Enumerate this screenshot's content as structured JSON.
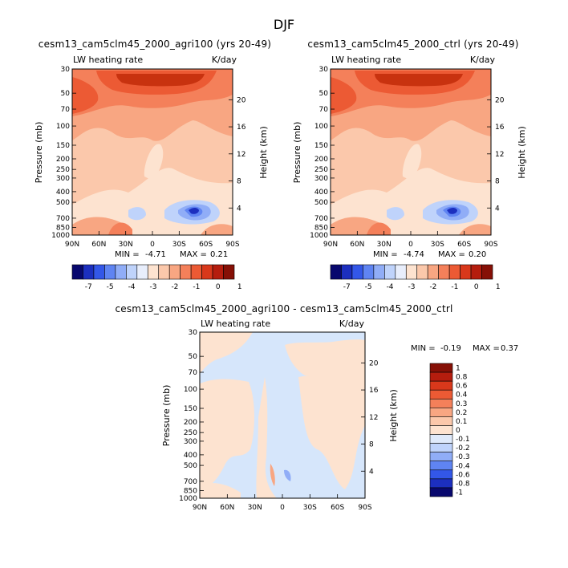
{
  "page_title": "DJF",
  "chart_data": [
    {
      "type": "heatmap",
      "title": "cesm13_cam5clm45_2000_agri100 (yrs 20-49)",
      "left_string": "LW heating rate",
      "right_string": "K/day",
      "ylabel": "Pressure (mb)",
      "y2label": "Height (km)",
      "x_ticks": [
        "90N",
        "60N",
        "30N",
        "0",
        "30S",
        "60S",
        "90S"
      ],
      "y_ticks": [
        "30",
        "50",
        "70",
        "100",
        "150",
        "200",
        "250",
        "300",
        "400",
        "500",
        "700",
        "850",
        "1000"
      ],
      "y2_ticks": [
        "20",
        "16",
        "12",
        "8",
        "4"
      ],
      "min_label": "MIN =",
      "min_value": "-4.71",
      "max_label": "MAX =",
      "max_value": "0.21",
      "ylim": [
        1000,
        30
      ],
      "xlim": [
        90,
        -90
      ]
    },
    {
      "type": "heatmap",
      "title": "cesm13_cam5clm45_2000_ctrl (yrs 20-49)",
      "left_string": "LW heating rate",
      "right_string": "K/day",
      "ylabel": "Pressure (mb)",
      "y2label": "Height (km)",
      "x_ticks": [
        "90N",
        "60N",
        "30N",
        "0",
        "30S",
        "60S",
        "90S"
      ],
      "y_ticks": [
        "30",
        "50",
        "70",
        "100",
        "150",
        "200",
        "250",
        "300",
        "400",
        "500",
        "700",
        "850",
        "1000"
      ],
      "y2_ticks": [
        "20",
        "16",
        "12",
        "8",
        "4"
      ],
      "min_label": "MIN =",
      "min_value": "-4.74",
      "max_label": "MAX =",
      "max_value": "0.20",
      "ylim": [
        1000,
        30
      ],
      "xlim": [
        90,
        -90
      ]
    },
    {
      "type": "heatmap",
      "title": "cesm13_cam5clm45_2000_agri100 - cesm13_cam5clm45_2000_ctrl",
      "left_string": "LW heating rate",
      "right_string": "K/day",
      "ylabel": "Pressure (mb)",
      "y2label": "Height (km)",
      "x_ticks": [
        "90N",
        "60N",
        "30N",
        "0",
        "30S",
        "60S",
        "90S"
      ],
      "y_ticks": [
        "30",
        "50",
        "70",
        "100",
        "150",
        "200",
        "250",
        "300",
        "400",
        "500",
        "700",
        "850",
        "1000"
      ],
      "y2_ticks": [
        "20",
        "16",
        "12",
        "8",
        "4"
      ],
      "min_label": "MIN =",
      "min_value": "-0.19",
      "max_label": "MAX =",
      "max_value": "0.37",
      "ylim": [
        1000,
        30
      ],
      "xlim": [
        90,
        -90
      ]
    }
  ],
  "colorbar_abs": {
    "labels": [
      "-7",
      "-5",
      "-4",
      "-3",
      "-2",
      "-1",
      "0",
      "1"
    ],
    "colors": [
      "#08086e",
      "#1c2fbf",
      "#3357e8",
      "#5f84f2",
      "#90adf7",
      "#bfd3fb",
      "#e8eefc",
      "#fde3d0",
      "#fbc8ab",
      "#f8a682",
      "#f4805a",
      "#ec5a34",
      "#d9381b",
      "#b51d0e",
      "#861006"
    ]
  },
  "colorbar_diff": {
    "labels": [
      "1",
      "0.8",
      "0.6",
      "0.4",
      "0.3",
      "0.2",
      "0.1",
      "0",
      "-0.1",
      "-0.2",
      "-0.3",
      "-0.4",
      "-0.6",
      "-0.8",
      "-1"
    ],
    "colors": [
      "#861006",
      "#b51d0e",
      "#d9381b",
      "#ec5a34",
      "#f4805a",
      "#f8a682",
      "#fbc8ab",
      "#fde3d0",
      "#dfeafb",
      "#bfd3fb",
      "#90adf7",
      "#5f84f2",
      "#3357e8",
      "#1c2fbf",
      "#08086e"
    ]
  },
  "colors": {
    "c_deep_red": "#c8320f",
    "c_red": "#ec5a34",
    "c_orange": "#f4805a",
    "c_salmon": "#f8a682",
    "c_peach": "#fbc8ab",
    "c_cream": "#fde3d0",
    "c_light_blue": "#bfd3fb",
    "c_mid_blue": "#90adf7",
    "c_blue": "#5f84f2",
    "c_deep_blue": "#1c2fbf",
    "c_diff_blue": "#d6e6fb",
    "c_diff_cream": "#fde3d0"
  }
}
